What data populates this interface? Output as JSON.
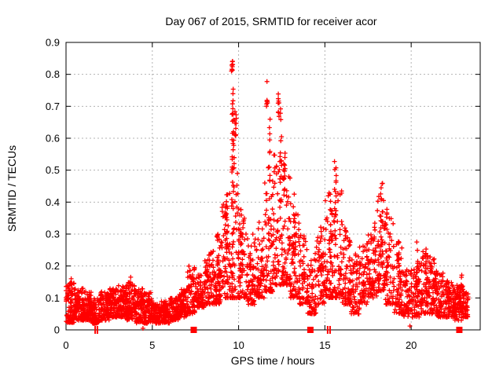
{
  "page": {
    "background": "#ffffff"
  },
  "chart_data": {
    "type": "scatter",
    "title": "Day 067 of 2015, SRMTID for receiver acor",
    "xlabel": "GPS time / hours",
    "ylabel": "SRMTID / TECUs",
    "xlim": [
      0,
      24
    ],
    "ylim": [
      0,
      0.9
    ],
    "xticks": [
      0,
      5,
      10,
      15,
      20
    ],
    "yticks": [
      0,
      0.1,
      0.2,
      0.3,
      0.4,
      0.5,
      0.6,
      0.7,
      0.8,
      0.9
    ],
    "xtick_labels": [
      "0",
      "5",
      "10",
      "15",
      "20"
    ],
    "ytick_labels": [
      "0",
      "0.1",
      "0.2",
      "0.3",
      "0.4",
      "0.5",
      "0.6",
      "0.7",
      "0.8",
      "0.9"
    ],
    "grid": true,
    "grid_style": "dashed",
    "grid_color": "#b3b3b3",
    "axis_color": "#000000",
    "marker": {
      "shape": "plus",
      "color": "#ff0000",
      "size": 7
    },
    "data_time_range_hours": [
      0,
      23.3
    ],
    "peaks": [
      {
        "t": 9.6,
        "y": 0.84
      },
      {
        "t": 11.7,
        "y": 0.76
      },
      {
        "t": 12.3,
        "y": 0.75
      },
      {
        "t": 15.6,
        "y": 0.53
      },
      {
        "t": 18.3,
        "y": 0.46
      }
    ],
    "point_cloud": {
      "seed": 1234,
      "segments": [
        [
          0.0,
          0.5,
          0.02,
          0.15,
          95,
          1.4
        ],
        [
          0.5,
          1.0,
          0.03,
          0.13,
          95,
          1.4
        ],
        [
          1.0,
          1.5,
          0.03,
          0.12,
          90,
          1.4
        ],
        [
          1.5,
          2.0,
          0.02,
          0.1,
          85,
          1.3
        ],
        [
          2.0,
          2.5,
          0.03,
          0.12,
          90,
          1.4
        ],
        [
          2.5,
          3.0,
          0.04,
          0.13,
          90,
          1.4
        ],
        [
          3.0,
          3.5,
          0.04,
          0.14,
          90,
          1.4
        ],
        [
          3.5,
          4.0,
          0.03,
          0.15,
          90,
          1.4
        ],
        [
          4.0,
          4.5,
          0.02,
          0.13,
          85,
          1.4
        ],
        [
          4.5,
          5.0,
          0.02,
          0.12,
          85,
          1.4
        ],
        [
          5.0,
          5.5,
          0.02,
          0.08,
          80,
          1.3
        ],
        [
          5.5,
          6.0,
          0.02,
          0.09,
          80,
          1.3
        ],
        [
          6.0,
          6.5,
          0.03,
          0.1,
          80,
          1.3
        ],
        [
          6.5,
          7.0,
          0.04,
          0.13,
          80,
          1.3
        ],
        [
          7.0,
          7.5,
          0.05,
          0.2,
          75,
          1.6
        ],
        [
          7.5,
          8.0,
          0.07,
          0.18,
          70,
          1.5
        ],
        [
          8.0,
          8.5,
          0.08,
          0.26,
          70,
          1.8
        ],
        [
          8.5,
          9.0,
          0.08,
          0.3,
          70,
          1.9
        ],
        [
          9.0,
          9.5,
          0.1,
          0.44,
          65,
          2.2
        ],
        [
          9.5,
          10.0,
          0.1,
          0.55,
          70,
          2.4
        ],
        [
          10.0,
          10.5,
          0.1,
          0.36,
          65,
          2.0
        ],
        [
          10.5,
          11.0,
          0.08,
          0.3,
          65,
          1.8
        ],
        [
          11.0,
          11.5,
          0.1,
          0.34,
          65,
          1.9
        ],
        [
          11.5,
          12.0,
          0.12,
          0.5,
          65,
          2.2
        ],
        [
          12.0,
          12.5,
          0.14,
          0.55,
          65,
          2.2
        ],
        [
          12.5,
          13.0,
          0.14,
          0.48,
          65,
          2.0
        ],
        [
          13.0,
          13.5,
          0.1,
          0.4,
          60,
          2.0
        ],
        [
          13.5,
          14.0,
          0.08,
          0.3,
          60,
          1.8
        ],
        [
          14.0,
          14.5,
          0.05,
          0.24,
          60,
          1.7
        ],
        [
          14.5,
          15.0,
          0.08,
          0.32,
          60,
          1.8
        ],
        [
          15.0,
          15.5,
          0.1,
          0.42,
          60,
          2.0
        ],
        [
          15.5,
          16.0,
          0.1,
          0.48,
          60,
          2.2
        ],
        [
          16.0,
          16.5,
          0.08,
          0.3,
          60,
          1.8
        ],
        [
          16.5,
          17.0,
          0.05,
          0.24,
          60,
          1.6
        ],
        [
          17.0,
          17.5,
          0.08,
          0.27,
          60,
          1.6
        ],
        [
          17.5,
          18.0,
          0.1,
          0.33,
          60,
          1.8
        ],
        [
          18.0,
          18.5,
          0.12,
          0.42,
          60,
          1.9
        ],
        [
          18.5,
          19.0,
          0.08,
          0.36,
          60,
          1.9
        ],
        [
          19.0,
          19.5,
          0.05,
          0.28,
          60,
          1.8
        ],
        [
          19.5,
          20.0,
          0.04,
          0.2,
          60,
          1.6
        ],
        [
          20.0,
          20.5,
          0.04,
          0.22,
          65,
          1.7
        ],
        [
          20.5,
          21.0,
          0.05,
          0.25,
          65,
          1.7
        ],
        [
          21.0,
          21.5,
          0.05,
          0.23,
          65,
          1.7
        ],
        [
          21.5,
          22.0,
          0.04,
          0.18,
          70,
          1.5
        ],
        [
          22.0,
          22.5,
          0.04,
          0.16,
          75,
          1.4
        ],
        [
          22.5,
          23.0,
          0.03,
          0.14,
          85,
          1.3
        ],
        [
          23.0,
          23.3,
          0.04,
          0.12,
          50,
          1.3
        ]
      ],
      "spikes": [
        [
          8.8,
          0.14,
          0.3,
          12,
          0.06
        ],
        [
          9.3,
          0.15,
          0.46,
          18,
          0.08
        ],
        [
          9.62,
          0.8,
          0.845,
          9,
          0.04
        ],
        [
          9.68,
          0.3,
          0.79,
          30,
          0.07
        ],
        [
          9.82,
          0.58,
          0.7,
          10,
          0.05
        ],
        [
          10.15,
          0.18,
          0.38,
          10,
          0.06
        ],
        [
          11.65,
          0.7,
          0.78,
          8,
          0.04
        ],
        [
          11.78,
          0.3,
          0.66,
          16,
          0.06
        ],
        [
          12.3,
          0.66,
          0.755,
          8,
          0.05
        ],
        [
          12.45,
          0.4,
          0.72,
          14,
          0.06
        ],
        [
          12.65,
          0.42,
          0.56,
          14,
          0.05
        ],
        [
          13.2,
          0.2,
          0.43,
          12,
          0.06
        ],
        [
          14.8,
          0.15,
          0.35,
          10,
          0.05
        ],
        [
          15.3,
          0.2,
          0.44,
          16,
          0.06
        ],
        [
          15.6,
          0.25,
          0.53,
          18,
          0.06
        ],
        [
          16.2,
          0.15,
          0.32,
          10,
          0.05
        ],
        [
          17.9,
          0.18,
          0.35,
          10,
          0.05
        ],
        [
          18.3,
          0.2,
          0.46,
          22,
          0.08
        ],
        [
          18.55,
          0.15,
          0.38,
          12,
          0.05
        ],
        [
          19.3,
          0.1,
          0.3,
          14,
          0.06
        ],
        [
          20.35,
          0.08,
          0.28,
          14,
          0.06
        ],
        [
          20.9,
          0.08,
          0.26,
          10,
          0.05
        ],
        [
          21.3,
          0.08,
          0.24,
          12,
          0.05
        ],
        [
          22.9,
          0.06,
          0.19,
          10,
          0.04
        ]
      ],
      "outliers": [
        [
          4.46,
          0.005
        ],
        [
          19.93,
          0.012
        ],
        [
          0.3,
          0.16
        ],
        [
          3.75,
          0.165
        ]
      ]
    },
    "axis_markers": [
      {
        "t": 1.69,
        "type": "bar"
      },
      {
        "t": 1.82,
        "type": "bar"
      },
      {
        "t": 7.4,
        "type": "square"
      },
      {
        "t": 14.16,
        "type": "square"
      },
      {
        "t": 15.16,
        "type": "bar"
      },
      {
        "t": 15.3,
        "type": "bar"
      },
      {
        "t": 22.79,
        "type": "square"
      }
    ]
  }
}
